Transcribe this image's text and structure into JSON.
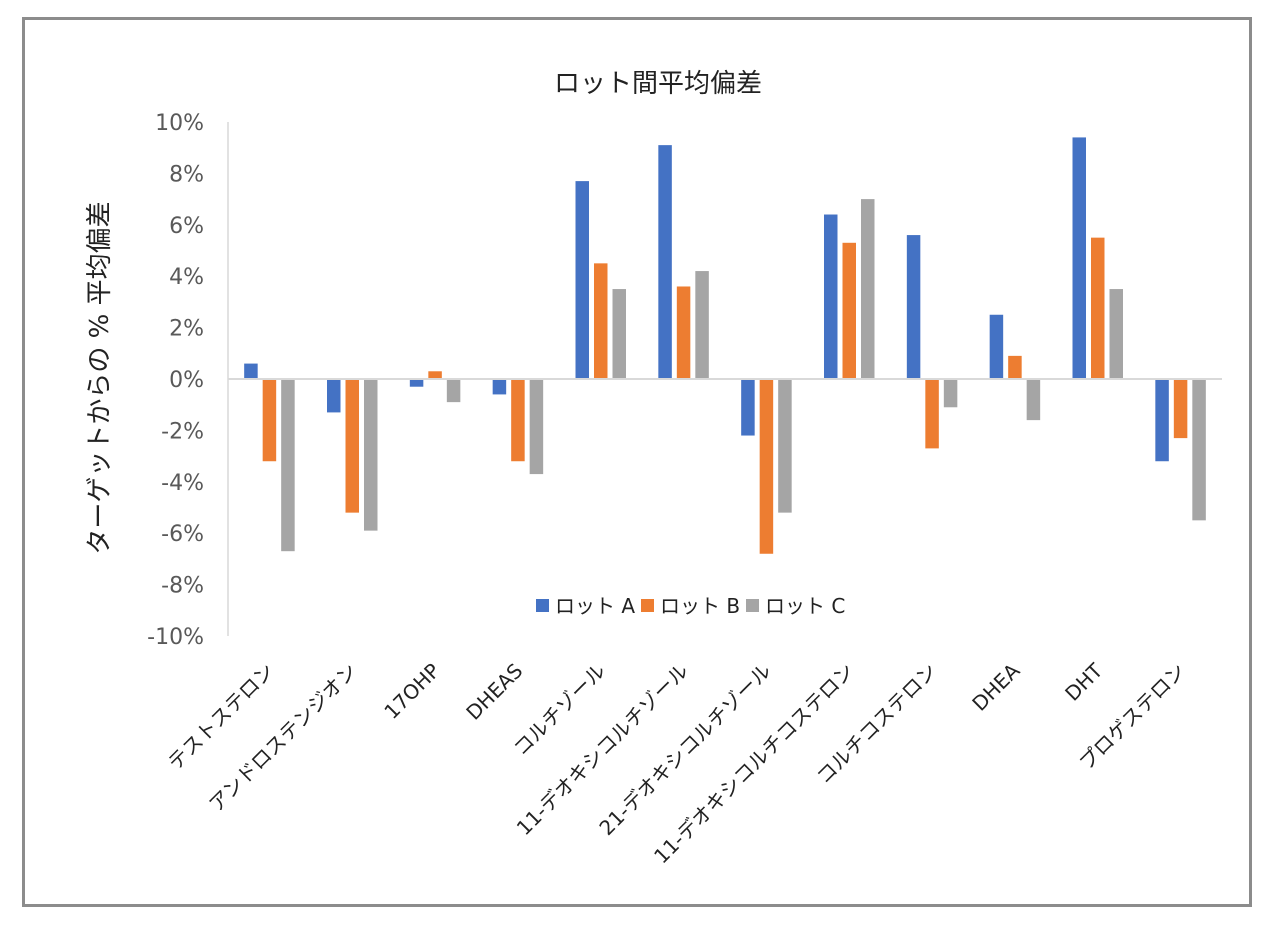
{
  "chart_data": {
    "type": "bar",
    "title": "ロット間平均偏差",
    "xlabel": "",
    "ylabel": "ターゲットからの % 平均偏差",
    "ylim": [
      -10,
      10
    ],
    "yticks": [
      10,
      8,
      6,
      4,
      2,
      0,
      -2,
      -4,
      -6,
      -8,
      -10
    ],
    "ytick_labels": [
      "10%",
      "8%",
      "6%",
      "4%",
      "2%",
      "0%",
      "-2%",
      "-4%",
      "-6%",
      "-8%",
      "-10%"
    ],
    "categories": [
      "テストステロン",
      "アンドロステンジオン",
      "17OHP",
      "DHEAS",
      "コルチゾール",
      "11-デオキシコルチゾール",
      "21-デオキシコルチゾール",
      "11-デオキシコルチコステロン",
      "コルチコステロン",
      "DHEA",
      "DHT",
      "プロゲステロン"
    ],
    "series": [
      {
        "name": "ロット A",
        "color": "#4472C4",
        "values": [
          0.6,
          -1.3,
          -0.3,
          -0.6,
          7.7,
          9.1,
          -2.2,
          6.4,
          5.6,
          2.5,
          9.4,
          -3.2
        ]
      },
      {
        "name": "ロット B",
        "color": "#ED7D31",
        "values": [
          -3.2,
          -5.2,
          0.3,
          -3.2,
          4.5,
          3.6,
          -6.8,
          5.3,
          -2.7,
          0.9,
          5.5,
          -2.3
        ]
      },
      {
        "name": "ロット C",
        "color": "#A5A5A5",
        "values": [
          -6.7,
          -5.9,
          -0.9,
          -3.7,
          3.5,
          4.2,
          -5.2,
          7.0,
          -1.1,
          -1.6,
          3.5,
          -5.5
        ]
      }
    ],
    "legend": {
      "position": "inside-bottom-center"
    },
    "grid": false
  }
}
